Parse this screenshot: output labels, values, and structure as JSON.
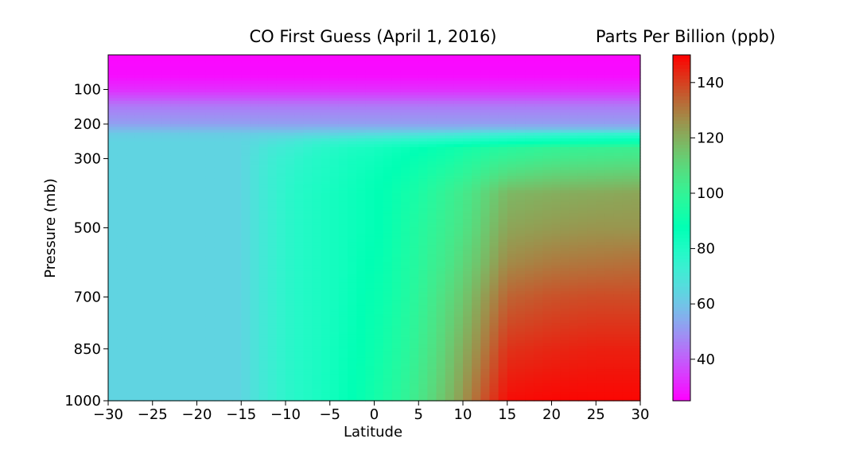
{
  "chart_data": {
    "type": "heatmap",
    "title": "CO First Guess (April 1, 2016)",
    "xlabel": "Latitude",
    "ylabel": "Pressure (mb)",
    "colorbar_label": "Parts Per Billion (ppb)",
    "colormap": "rainbow",
    "xlim": [
      -30,
      30
    ],
    "ylim": [
      1000,
      0
    ],
    "x_ticks": [
      -30,
      -25,
      -20,
      -15,
      -10,
      -5,
      0,
      5,
      10,
      15,
      20,
      25,
      30
    ],
    "y_ticks": [
      100,
      200,
      300,
      500,
      700,
      850,
      1000
    ],
    "colorbar_range": [
      25,
      150
    ],
    "colorbar_ticks": [
      40,
      60,
      80,
      100,
      120,
      140
    ],
    "latitudes": [
      -30,
      -20,
      -15,
      -14,
      -13,
      -12,
      -11,
      -10,
      -9,
      -8,
      -7,
      -6,
      -5,
      -4,
      -3,
      -2,
      -1,
      0,
      1,
      2,
      3,
      4,
      5,
      6,
      7,
      8,
      9,
      10,
      11,
      12,
      13,
      14,
      15,
      20,
      25,
      30
    ],
    "pressures": [
      0,
      60,
      100,
      150,
      200,
      215,
      230,
      250,
      270,
      300,
      350,
      400,
      500,
      600,
      700,
      850,
      1000
    ],
    "values": [
      [
        26,
        26,
        26,
        26,
        26,
        26,
        26,
        26,
        26,
        26,
        26,
        26,
        26,
        26,
        26,
        26,
        26,
        26,
        26,
        26,
        26,
        26,
        26,
        26,
        26,
        26,
        26,
        26,
        26,
        26,
        26,
        26,
        26,
        26,
        26,
        26
      ],
      [
        27,
        27,
        27,
        27,
        27,
        27,
        27,
        27,
        27,
        27,
        27,
        27,
        27,
        27,
        27,
        27,
        27,
        27,
        27,
        27,
        27,
        27,
        27,
        27,
        27,
        27,
        27,
        27,
        27,
        27,
        27,
        27,
        27,
        27,
        27,
        27
      ],
      [
        32,
        32,
        32,
        32,
        32,
        32,
        32,
        32,
        32,
        32,
        32,
        32,
        32,
        32,
        32,
        32,
        32,
        32,
        32,
        32,
        32,
        32,
        32,
        32,
        32,
        32,
        32,
        32,
        32,
        32,
        32,
        32,
        32,
        32,
        32,
        32
      ],
      [
        45,
        45,
        45,
        45,
        45,
        45,
        45,
        45,
        45,
        45,
        45,
        45,
        45,
        45,
        45,
        45,
        45,
        45,
        45,
        45,
        45,
        45,
        45,
        45,
        45,
        45,
        45,
        45,
        45,
        45,
        45,
        45,
        45,
        45,
        45,
        45
      ],
      [
        52,
        52,
        52,
        52,
        52,
        52,
        52,
        52,
        52,
        52,
        52,
        52,
        52,
        52,
        52,
        52,
        52,
        52,
        52,
        52,
        52,
        52,
        52,
        52,
        52,
        52,
        52,
        52,
        52,
        52,
        52,
        52,
        52,
        52,
        52,
        52
      ],
      [
        57,
        57,
        57,
        57,
        57,
        57,
        57,
        57,
        57,
        57,
        58,
        58,
        58,
        58,
        58,
        58,
        58,
        58,
        58,
        58,
        58,
        58,
        58,
        58,
        58,
        58,
        58,
        58,
        59,
        59,
        59,
        59,
        59,
        59,
        59,
        59
      ],
      [
        62,
        62,
        62,
        62,
        63,
        63,
        63,
        63,
        63,
        64,
        64,
        64,
        64,
        65,
        65,
        65,
        66,
        66,
        66,
        67,
        67,
        67,
        68,
        68,
        68,
        69,
        69,
        70,
        70,
        71,
        71,
        72,
        72,
        74,
        75,
        76
      ],
      [
        64,
        64,
        64,
        65,
        66,
        67,
        68,
        69,
        70,
        71,
        72,
        73,
        74,
        74,
        75,
        75,
        76,
        76,
        77,
        77,
        78,
        78,
        79,
        79,
        80,
        80,
        81,
        81,
        82,
        82,
        83,
        83,
        84,
        86,
        87,
        88
      ],
      [
        64,
        64,
        64,
        66,
        68,
        70,
        71,
        72,
        73,
        74,
        76,
        77,
        78,
        79,
        80,
        81,
        81,
        82,
        83,
        84,
        85,
        86,
        87,
        88,
        89,
        90,
        91,
        92,
        93,
        94,
        95,
        96,
        97,
        100,
        101,
        102
      ],
      [
        64,
        64,
        64,
        67,
        69,
        71,
        73,
        74,
        75,
        77,
        78,
        79,
        80,
        81,
        82,
        83,
        83,
        84,
        85,
        86,
        87,
        88,
        89,
        90,
        91,
        92,
        93,
        95,
        96,
        97,
        99,
        100,
        101,
        104,
        105,
        106
      ],
      [
        64,
        64,
        64,
        67,
        70,
        72,
        74,
        75,
        77,
        78,
        79,
        80,
        81,
        82,
        83,
        84,
        85,
        86,
        87,
        88,
        89,
        90,
        92,
        93,
        95,
        96,
        98,
        99,
        101,
        103,
        105,
        107,
        109,
        112,
        113,
        114
      ],
      [
        64,
        64,
        64,
        67,
        70,
        72,
        74,
        76,
        78,
        79,
        80,
        81,
        82,
        83,
        84,
        85,
        86,
        87,
        88,
        89,
        91,
        92,
        94,
        96,
        98,
        100,
        102,
        104,
        106,
        109,
        112,
        115,
        118,
        120,
        121,
        122
      ],
      [
        64,
        64,
        64,
        67,
        70,
        72,
        74,
        76,
        78,
        79,
        80,
        81,
        82,
        83,
        84,
        85,
        86,
        87,
        88,
        90,
        92,
        94,
        96,
        98,
        100,
        102,
        104,
        106,
        109,
        112,
        116,
        119,
        122,
        124,
        125,
        125
      ],
      [
        64,
        64,
        64,
        67,
        70,
        72,
        74,
        76,
        78,
        79,
        80,
        81,
        82,
        83,
        84,
        86,
        87,
        88,
        89,
        91,
        93,
        95,
        97,
        100,
        102,
        104,
        107,
        110,
        113,
        116,
        120,
        124,
        127,
        130,
        131,
        132
      ],
      [
        64,
        64,
        64,
        67,
        70,
        72,
        74,
        76,
        78,
        79,
        80,
        81,
        82,
        83,
        85,
        86,
        88,
        89,
        90,
        92,
        94,
        96,
        99,
        102,
        105,
        108,
        111,
        114,
        118,
        122,
        126,
        130,
        134,
        137,
        138,
        138
      ],
      [
        64,
        64,
        64,
        67,
        70,
        72,
        74,
        76,
        78,
        79,
        80,
        81,
        83,
        84,
        86,
        87,
        89,
        90,
        92,
        94,
        96,
        98,
        102,
        105,
        108,
        112,
        116,
        120,
        124,
        128,
        133,
        138,
        142,
        144,
        145,
        145
      ],
      [
        64,
        64,
        64,
        67,
        70,
        72,
        74,
        76,
        78,
        79,
        80,
        82,
        83,
        85,
        87,
        88,
        90,
        92,
        94,
        96,
        98,
        101,
        105,
        108,
        112,
        116,
        120,
        125,
        130,
        135,
        140,
        144,
        148,
        149,
        149,
        149
      ]
    ]
  }
}
